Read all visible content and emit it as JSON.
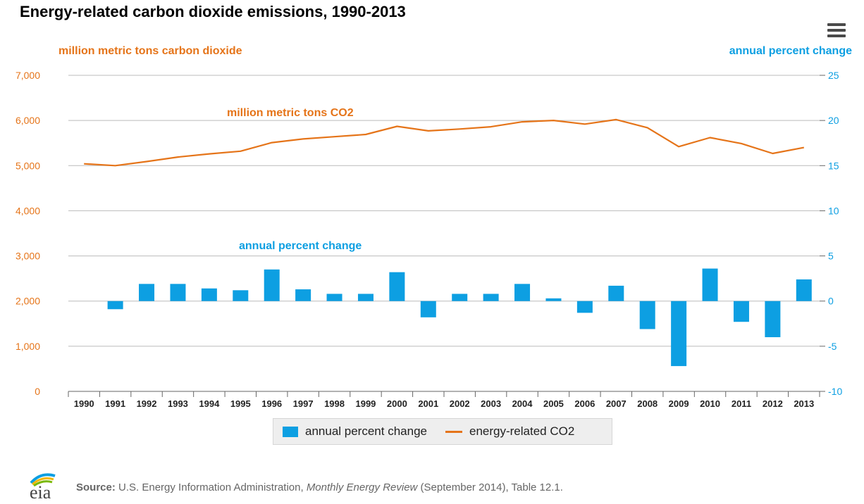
{
  "title": "Energy-related carbon dioxide emissions, 1990-2013",
  "left_axis_title": "million metric tons carbon dioxide",
  "right_axis_title": "annual percent change",
  "line_series_label": "million metric tons CO2",
  "bar_series_label": "annual percent change",
  "legend": {
    "bar_label": "annual percent change",
    "line_label": "energy-related CO2"
  },
  "source": {
    "label": "Source:",
    "text_before": " U.S. Energy Information Administration, ",
    "publication": "Monthly Energy Review",
    "text_after": " (September 2014), Table 12.1."
  },
  "logo_text": "eia",
  "colors": {
    "line": "#e57419",
    "bars": "#0d9fe2",
    "left_axis": "#e57419",
    "right_axis": "#0d9fe2",
    "grid": "#bbbbbb"
  },
  "icons": {
    "menu": "hamburger-menu-icon"
  },
  "chart_data": {
    "type": "bar",
    "categories": [
      "1990",
      "1991",
      "1992",
      "1993",
      "1994",
      "1995",
      "1996",
      "1997",
      "1998",
      "1999",
      "2000",
      "2001",
      "2002",
      "2003",
      "2004",
      "2005",
      "2006",
      "2007",
      "2008",
      "2009",
      "2010",
      "2011",
      "2012",
      "2013"
    ],
    "series": [
      {
        "name": "annual percent change",
        "type": "bar",
        "axis": "right",
        "values": [
          null,
          -0.9,
          1.9,
          1.9,
          1.4,
          1.2,
          3.5,
          1.3,
          0.8,
          0.8,
          3.2,
          -1.8,
          0.8,
          0.8,
          1.9,
          0.3,
          -1.3,
          1.7,
          -3.1,
          -7.2,
          3.6,
          -2.3,
          -4.0,
          2.4
        ]
      },
      {
        "name": "energy-related CO2",
        "type": "line",
        "axis": "left",
        "values": [
          5040,
          5000,
          5090,
          5190,
          5260,
          5320,
          5510,
          5590,
          5640,
          5690,
          5870,
          5770,
          5810,
          5860,
          5970,
          6000,
          5920,
          6020,
          5840,
          5420,
          5620,
          5490,
          5270,
          5400
        ]
      }
    ],
    "yleft": {
      "label": "million metric tons carbon dioxide",
      "ylim": [
        0,
        7000
      ],
      "ticks": [
        "0",
        "1,000",
        "2,000",
        "3,000",
        "4,000",
        "5,000",
        "6,000",
        "7,000"
      ]
    },
    "yright": {
      "label": "annual percent change",
      "ylim": [
        -10,
        25
      ],
      "ticks": [
        "-10",
        "-5",
        "0",
        "5",
        "10",
        "15",
        "20",
        "25"
      ]
    },
    "grid": true,
    "legend_position": "bottom"
  }
}
